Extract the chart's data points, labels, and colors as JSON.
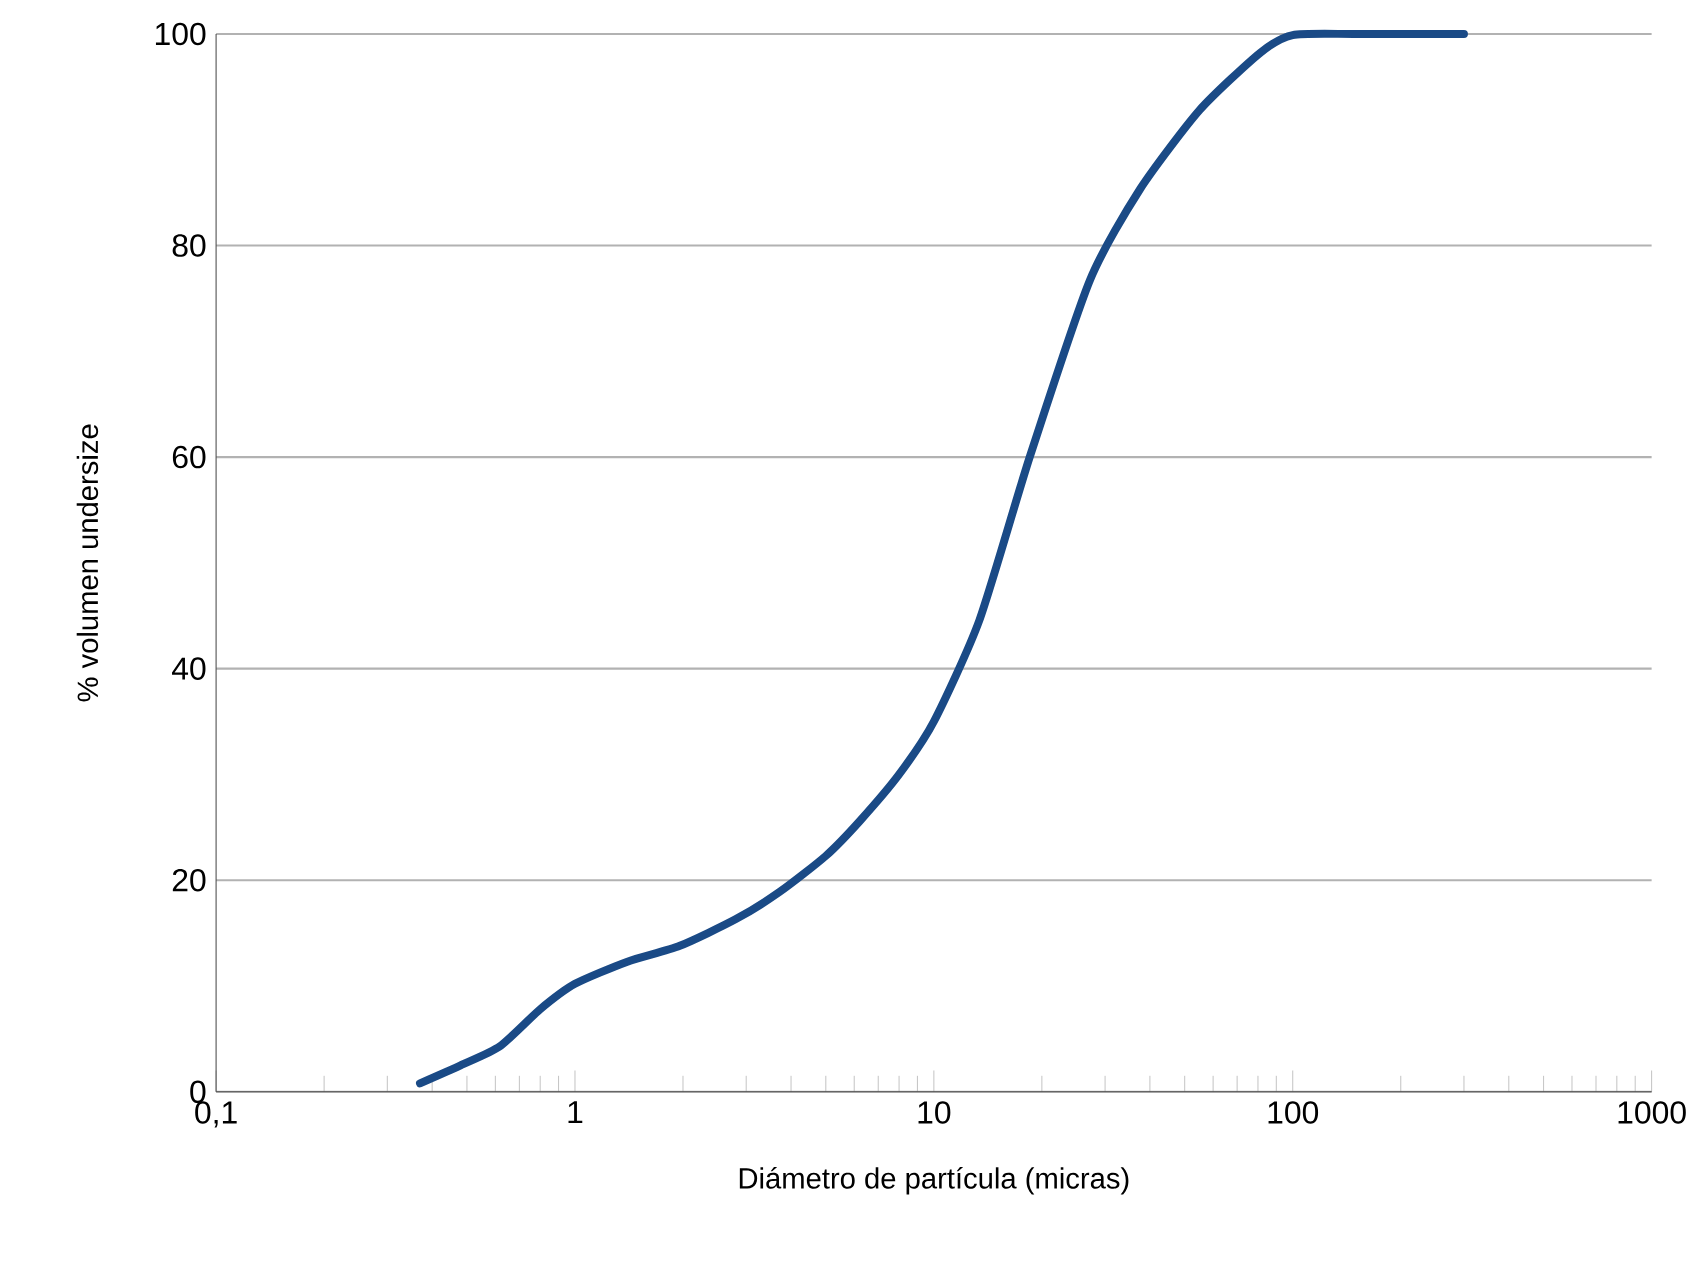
{
  "chart_data": {
    "type": "line",
    "xlabel": "Diámetro de partícula (micras)",
    "ylabel": "% volumen undersize",
    "log": "x",
    "grid": "y",
    "marker": "none",
    "line_style": "solid",
    "xlim": [
      0.1,
      1000
    ],
    "xticks": [
      {
        "value": 0.1,
        "label": "0,1"
      },
      1,
      10,
      100,
      1000
    ],
    "ylim": [
      0,
      100
    ],
    "yticks": [
      0,
      20,
      40,
      60,
      80,
      100
    ],
    "series": [
      {
        "color": "#1a4a86",
        "x": [
          0.37,
          0.48,
          0.618,
          0.8,
          1,
          1.4,
          1.96,
          2.8,
          3.72,
          5,
          6.22,
          8,
          10,
          13.4,
          18.5,
          27.2,
          37.5,
          55,
          81,
          100,
          150,
          300
        ],
        "values": [
          0.8,
          2.5,
          4.3,
          7.8,
          10.2,
          12.3,
          13.8,
          16.3,
          18.9,
          22.3,
          25.6,
          30,
          35,
          44.6,
          60,
          76.7,
          85.3,
          92.8,
          98.2,
          99.9,
          100,
          100
        ]
      }
    ]
  }
}
